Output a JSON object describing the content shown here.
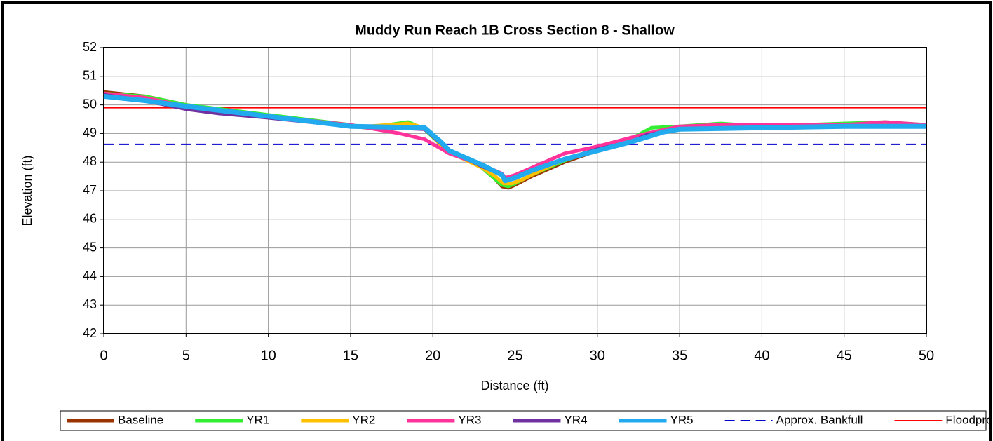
{
  "chart_data": {
    "type": "line",
    "title": "Muddy Run Reach 1B Cross Section 8 - Shallow",
    "xlabel": "Distance (ft)",
    "ylabel": "Elevation (ft)",
    "xlim": [
      0,
      50
    ],
    "xticks": [
      0,
      5,
      10,
      15,
      20,
      25,
      30,
      35,
      40,
      45,
      50
    ],
    "ylim": [
      42,
      52
    ],
    "yticks": [
      42,
      43,
      44,
      45,
      46,
      47,
      48,
      49,
      50,
      51,
      52
    ],
    "grid": true,
    "legend": "bottom",
    "series": [
      {
        "name": "Approx. Bankfull",
        "color": "#0000cc",
        "dashed": true,
        "x": [
          0,
          50
        ],
        "values": [
          48.62,
          48.62
        ]
      },
      {
        "name": "Floodprone Area",
        "color": "#ff0000",
        "x": [
          0,
          50
        ],
        "values": [
          49.9,
          49.9
        ]
      },
      {
        "name": "Baseline",
        "color": "#993300",
        "x": [
          0,
          2.5,
          5,
          10,
          15,
          16,
          18.5,
          19.5,
          20.5,
          21,
          23,
          23.8,
          24.2,
          24.6,
          25,
          26,
          28,
          30,
          32,
          33,
          35,
          37.5,
          40,
          45,
          47.5,
          50
        ],
        "values": [
          50.45,
          50.3,
          50.0,
          49.6,
          49.25,
          49.2,
          49.3,
          49.2,
          48.6,
          48.4,
          47.8,
          47.4,
          47.15,
          47.1,
          47.2,
          47.5,
          48.0,
          48.4,
          48.8,
          49.0,
          49.2,
          49.3,
          49.25,
          49.3,
          49.35,
          49.3
        ]
      },
      {
        "name": "YR1",
        "color": "#33ee33",
        "x": [
          0,
          2.5,
          5,
          10,
          15,
          16,
          18.5,
          19.5,
          20.5,
          21,
          23,
          23.8,
          24.2,
          24.6,
          25,
          26,
          28,
          30,
          32,
          33.3,
          35,
          37.5,
          40,
          45,
          47.5,
          50
        ],
        "values": [
          50.4,
          50.3,
          50.0,
          49.65,
          49.3,
          49.2,
          49.4,
          49.15,
          48.6,
          48.4,
          47.8,
          47.4,
          47.2,
          47.15,
          47.25,
          47.55,
          48.05,
          48.45,
          48.8,
          49.2,
          49.25,
          49.35,
          49.25,
          49.35,
          49.4,
          49.3
        ]
      },
      {
        "name": "YR2",
        "color": "#ffc000",
        "x": [
          0,
          2.5,
          5,
          10,
          15,
          16,
          18.5,
          19.5,
          20.5,
          21,
          23,
          23.8,
          24.3,
          24.8,
          25.5,
          26,
          28,
          30,
          32,
          33,
          35,
          37.5,
          40,
          45,
          47.5,
          50
        ],
        "values": [
          50.4,
          50.25,
          49.95,
          49.6,
          49.25,
          49.25,
          49.35,
          49.2,
          48.6,
          48.35,
          47.8,
          47.5,
          47.25,
          47.25,
          47.4,
          47.55,
          48.1,
          48.45,
          48.8,
          49.0,
          49.15,
          49.2,
          49.2,
          49.25,
          49.3,
          49.3
        ]
      },
      {
        "name": "YR3",
        "color": "#ff3399",
        "x": [
          0,
          2.5,
          5,
          10,
          15,
          16,
          18,
          19.5,
          21,
          23,
          24.2,
          24.4,
          25,
          26,
          28,
          30,
          32,
          33,
          35,
          37.5,
          40,
          45,
          47.5,
          50
        ],
        "values": [
          50.4,
          50.25,
          49.95,
          49.6,
          49.3,
          49.2,
          49.0,
          48.8,
          48.3,
          47.9,
          47.6,
          47.45,
          47.55,
          47.8,
          48.3,
          48.55,
          48.85,
          49.0,
          49.25,
          49.3,
          49.3,
          49.3,
          49.4,
          49.3
        ]
      },
      {
        "name": "YR4",
        "color": "#7030a0",
        "x": [
          0,
          2.5,
          5,
          7,
          10,
          15,
          19.5,
          20.5,
          21,
          23,
          24.2,
          24.4,
          25,
          26,
          28,
          30,
          32,
          33,
          35,
          40,
          45,
          50
        ],
        "values": [
          50.35,
          50.15,
          49.85,
          49.7,
          49.55,
          49.25,
          49.15,
          48.65,
          48.4,
          47.85,
          47.55,
          47.35,
          47.45,
          47.7,
          48.1,
          48.45,
          48.7,
          48.95,
          49.15,
          49.2,
          49.25,
          49.25
        ]
      },
      {
        "name": "YR5",
        "color": "#22aaee",
        "x": [
          0,
          2.5,
          5,
          10,
          15,
          19.5,
          20.5,
          21,
          23,
          24.2,
          24.4,
          25,
          26,
          28,
          31,
          32,
          34,
          35,
          40,
          45,
          50
        ],
        "values": [
          50.3,
          50.15,
          49.95,
          49.6,
          49.25,
          49.2,
          48.7,
          48.4,
          47.9,
          47.55,
          47.35,
          47.45,
          47.7,
          48.1,
          48.55,
          48.7,
          49.05,
          49.15,
          49.2,
          49.25,
          49.25
        ]
      }
    ]
  }
}
